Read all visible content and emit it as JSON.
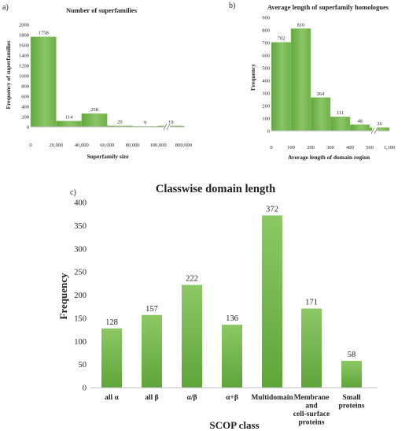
{
  "chart_data": [
    {
      "panel_label": "a)",
      "type": "bar",
      "title": "Number of superfamilies",
      "xlabel": "Superfamily size",
      "ylabel": "Frequency of superfamilies",
      "x_ticks": [
        "0",
        "20,000",
        "40,000",
        "60,000",
        "80,000",
        "100,000",
        "800,000"
      ],
      "y_ticks": [
        "0",
        "200",
        "400",
        "600",
        "800",
        "1000",
        "1200",
        "1400",
        "1600",
        "1800",
        "2000"
      ],
      "values": [
        1758,
        114,
        258,
        20,
        9,
        19
      ],
      "data_labels": [
        "1758",
        "114",
        "258",
        "20",
        "9",
        "19"
      ],
      "ylim": [
        0,
        2000
      ],
      "axis_break": true,
      "color": "#6fb04a",
      "grid": false
    },
    {
      "panel_label": "b)",
      "type": "bar",
      "title": "Average length of superfamily homologues",
      "xlabel": "Average length of domain region",
      "ylabel": "Frequency",
      "x_ticks": [
        "0",
        "100",
        "200",
        "300",
        "400",
        "500",
        "1,100"
      ],
      "y_ticks": [
        "0",
        "100",
        "200",
        "300",
        "400",
        "500",
        "600",
        "700",
        "800",
        "900"
      ],
      "values": [
        702,
        810,
        264,
        111,
        48,
        26
      ],
      "data_labels": [
        "702",
        "810",
        "264",
        "111",
        "48",
        "26"
      ],
      "ylim": [
        0,
        900
      ],
      "axis_break": true,
      "color": "#6fb04a",
      "grid": false
    },
    {
      "panel_label": "c)",
      "type": "bar",
      "title": "Classwise domain length",
      "xlabel": "SCOP class",
      "ylabel": "Frequency",
      "categories": [
        [
          "all α"
        ],
        [
          "all β"
        ],
        [
          "α/β"
        ],
        [
          "α+β"
        ],
        [
          "Multidomain"
        ],
        [
          "Membrane",
          "and",
          "cell-surface",
          "proteins"
        ],
        [
          "Small",
          "proteins"
        ]
      ],
      "y_ticks": [
        "0",
        "50",
        "100",
        "150",
        "200",
        "250",
        "300",
        "350",
        "400"
      ],
      "values": [
        128,
        157,
        222,
        136,
        372,
        171,
        58
      ],
      "data_labels": [
        "128",
        "157",
        "222",
        "136",
        "372",
        "171",
        "58"
      ],
      "ylim": [
        0,
        400
      ],
      "color": "#6fb04a",
      "grid": false
    }
  ]
}
